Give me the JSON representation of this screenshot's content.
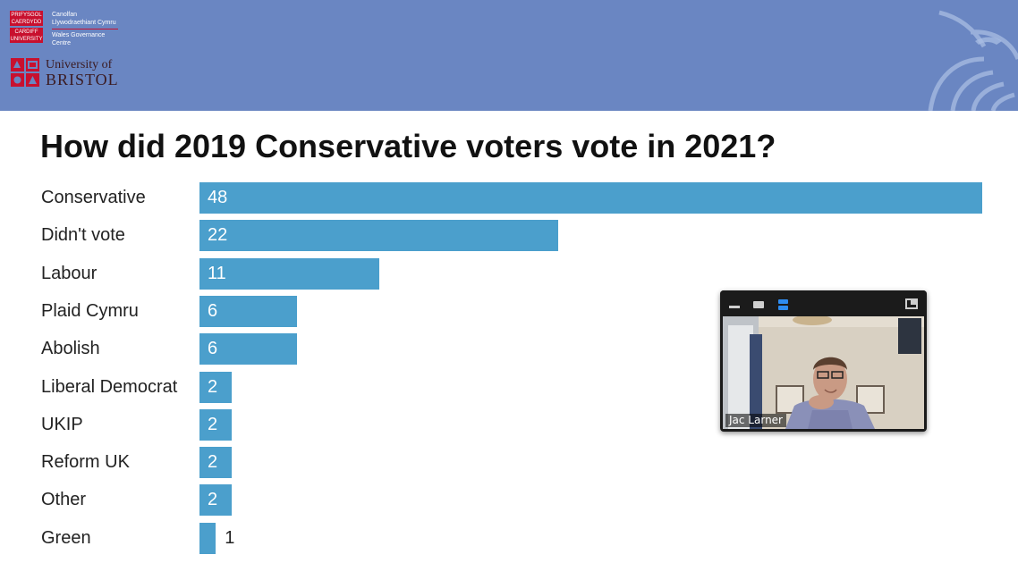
{
  "header": {
    "cardiff_logo": {
      "line1": "PRIFYSGOL",
      "line1b": "CAERDYDD",
      "line2": "CARDIFF",
      "line2b": "UNIVERSITY"
    },
    "wgc": {
      "welsh_line1": "Canolfan",
      "welsh_line2": "Llywodraethiant Cymru",
      "english_line1": "Wales Governance",
      "english_line2": "Centre"
    },
    "bristol_logo": {
      "line1": "University of",
      "line2": "BRISTOL"
    },
    "banner_color": "#6a86c2"
  },
  "title": "How did 2019 Conservative voters vote in 2021?",
  "chart_data": {
    "type": "bar",
    "orientation": "horizontal",
    "categories": [
      "Conservative",
      "Didn't vote",
      "Labour",
      "Plaid Cymru",
      "Abolish",
      "Liberal Democrat",
      "UKIP",
      "Reform UK",
      "Other",
      "Green"
    ],
    "values": [
      48,
      22,
      11,
      6,
      6,
      2,
      2,
      2,
      2,
      1
    ],
    "value_labels": [
      "48",
      "22",
      "11",
      "6",
      "6",
      "2",
      "2",
      "2",
      "2",
      "1"
    ],
    "bar_color": "#4b9fcc",
    "grid": false,
    "legend": "none"
  },
  "video_window": {
    "participant_name": "Jac Larner",
    "icons": [
      "minimize-icon",
      "small-view-icon",
      "split-view-icon",
      "expand-icon"
    ],
    "accent_color": "#2e8cf0"
  }
}
